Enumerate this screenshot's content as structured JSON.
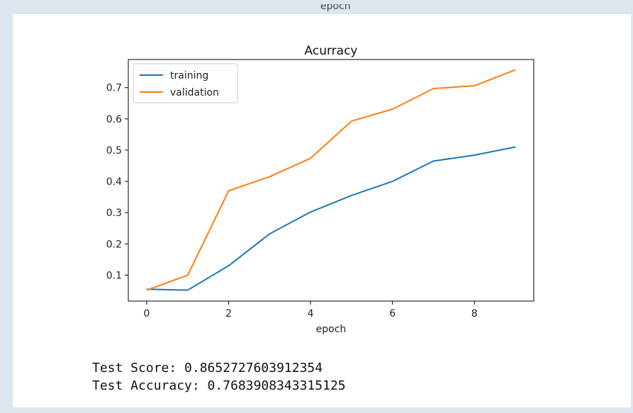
{
  "top_clipped_label": "epoch",
  "chart_data": {
    "type": "line",
    "title": "Acurracy",
    "xlabel": "epoch",
    "ylabel": "",
    "x": [
      0,
      1,
      2,
      3,
      4,
      5,
      6,
      7,
      8,
      9
    ],
    "xlim": [
      -0.45,
      9.45
    ],
    "ylim": [
      0.017,
      0.79
    ],
    "xticks": [
      0,
      2,
      4,
      6,
      8
    ],
    "yticks": [
      0.1,
      0.2,
      0.3,
      0.4,
      0.5,
      0.6,
      0.7
    ],
    "legend_position": "top-left",
    "grid": false,
    "series": [
      {
        "name": "training",
        "color": "#1f77b4",
        "values": [
          0.055,
          0.052,
          0.13,
          0.232,
          0.302,
          0.355,
          0.4,
          0.465,
          0.484,
          0.51
        ]
      },
      {
        "name": "validation",
        "color": "#ff7f0e",
        "values": [
          0.052,
          0.1,
          0.37,
          0.415,
          0.474,
          0.593,
          0.631,
          0.697,
          0.706,
          0.757
        ]
      }
    ]
  },
  "output": {
    "line1": "Test Score: 0.8652727603912354",
    "line2": "Test Accuracy: 0.7683908343315125"
  }
}
